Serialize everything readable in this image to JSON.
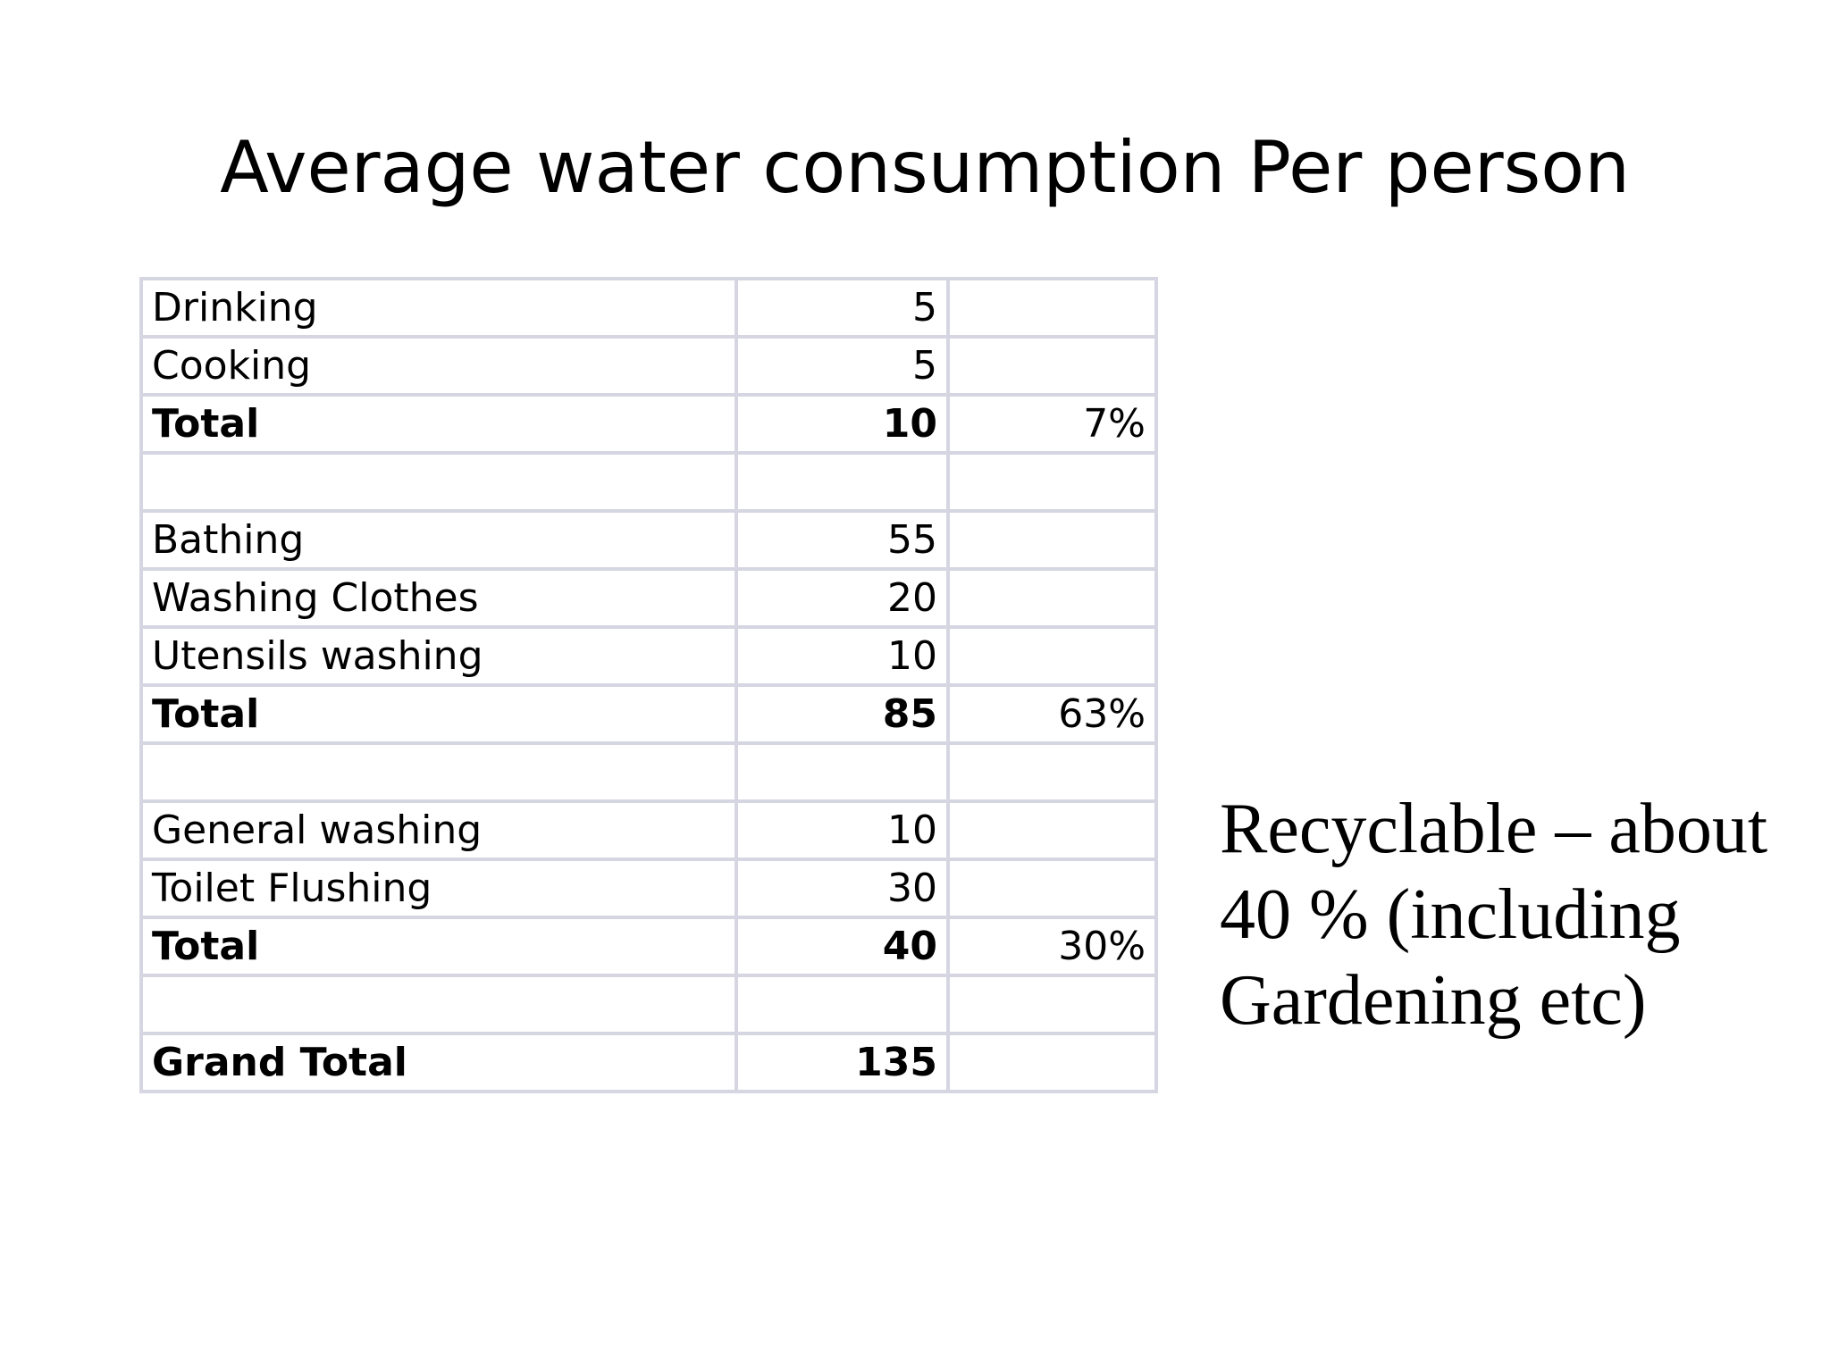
{
  "slide": {
    "title": "Average water consumption Per person",
    "note": "Recyclable – about 40 % (including Gardening etc)"
  },
  "table": {
    "rows": [
      {
        "label": "Drinking",
        "value": "5",
        "percent": "",
        "bold": false
      },
      {
        "label": "Cooking",
        "value": "5",
        "percent": "",
        "bold": false
      },
      {
        "label": "Total",
        "value": "10",
        "percent": "7%",
        "bold": true
      },
      {
        "label": "",
        "value": "",
        "percent": "",
        "bold": false
      },
      {
        "label": "Bathing",
        "value": "55",
        "percent": "",
        "bold": false
      },
      {
        "label": "Washing Clothes",
        "value": "20",
        "percent": "",
        "bold": false
      },
      {
        "label": "Utensils washing",
        "value": "10",
        "percent": "",
        "bold": false
      },
      {
        "label": "Total",
        "value": "85",
        "percent": "63%",
        "bold": true
      },
      {
        "label": "",
        "value": "",
        "percent": "",
        "bold": false
      },
      {
        "label": "General washing",
        "value": "10",
        "percent": "",
        "bold": false
      },
      {
        "label": "Toilet Flushing",
        "value": "30",
        "percent": "",
        "bold": false
      },
      {
        "label": "Total",
        "value": "40",
        "percent": "30%",
        "bold": true
      },
      {
        "label": "",
        "value": "",
        "percent": "",
        "bold": false
      },
      {
        "label": "Grand Total",
        "value": "135",
        "percent": "",
        "bold": true
      }
    ]
  },
  "colors": {
    "grid": "#d6d6e2",
    "text": "#000000",
    "background": "#ffffff"
  }
}
